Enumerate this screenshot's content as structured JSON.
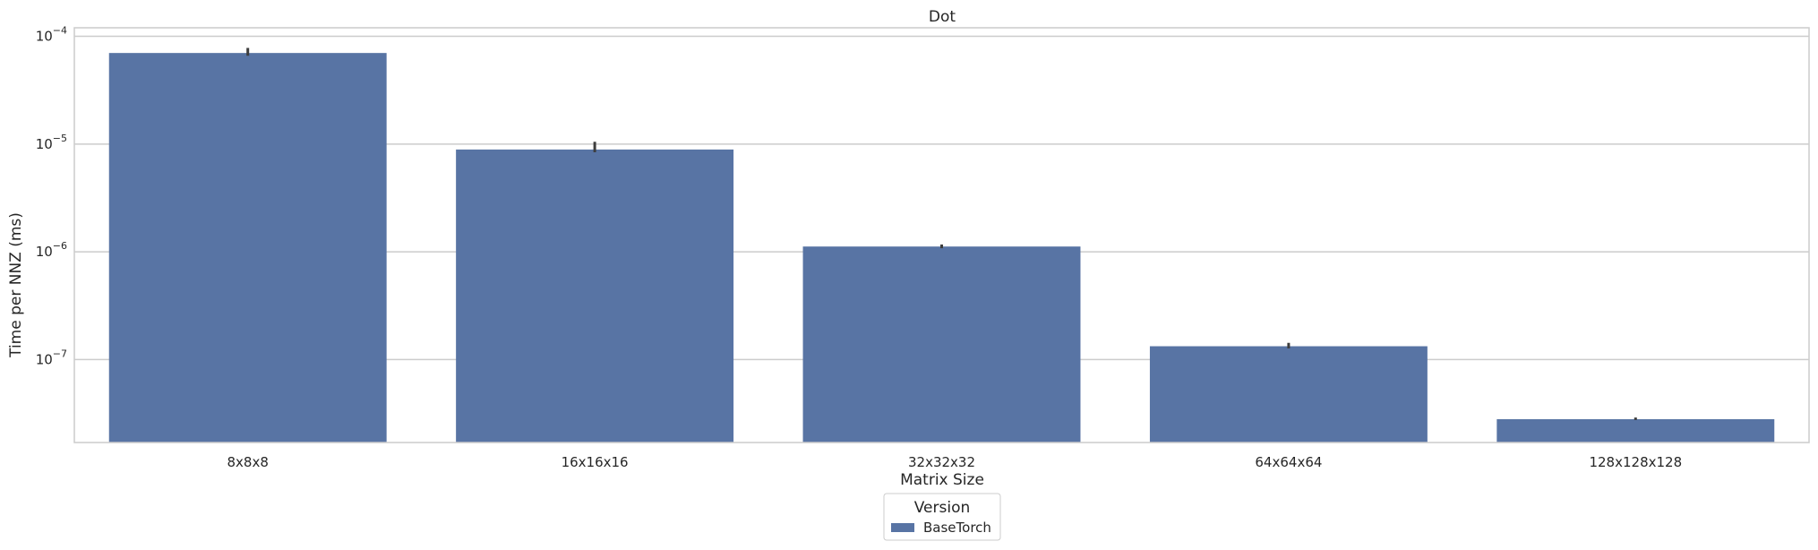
{
  "chart_data": {
    "type": "bar",
    "title": "Dot",
    "xlabel": "Matrix Size",
    "ylabel": "Time per NNZ (ms)",
    "yscale": "log",
    "ylim": [
      1.7e-08,
      0.00012
    ],
    "yticks": [
      {
        "value": 0.0001,
        "base": "10",
        "exp": "−4"
      },
      {
        "value": 1e-05,
        "base": "10",
        "exp": "−5"
      },
      {
        "value": 1e-06,
        "base": "10",
        "exp": "−6"
      },
      {
        "value": 1e-07,
        "base": "10",
        "exp": "−7"
      }
    ],
    "grid": true,
    "categories": [
      "8x8x8",
      "16x16x16",
      "32x32x32",
      "64x64x64",
      "128x128x128"
    ],
    "series": [
      {
        "name": "BaseTorch",
        "color": "#5874a4",
        "values": [
          7e-05,
          8.9e-06,
          1.12e-06,
          1.33e-07,
          2.8e-08
        ],
        "err_low": [
          6.6e-05,
          8.4e-06,
          1.08e-06,
          1.27e-07,
          2.75e-08
        ],
        "err_high": [
          7.8e-05,
          1.05e-05,
          1.17e-06,
          1.43e-07,
          2.9e-08
        ]
      }
    ],
    "legend": {
      "title": "Version",
      "placement": "bottom-center"
    }
  }
}
